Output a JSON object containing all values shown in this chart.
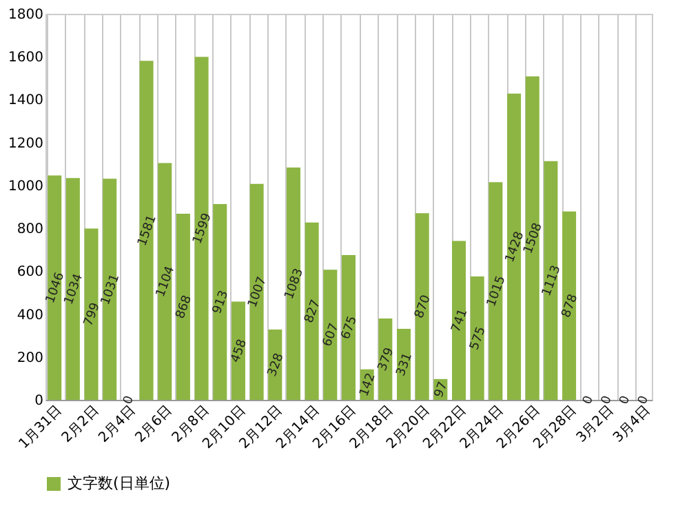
{
  "chart_data": {
    "type": "bar",
    "categories": [
      "1月31日",
      null,
      "2月2日",
      null,
      "2月4日",
      null,
      "2月6日",
      null,
      "2月8日",
      null,
      "2月10日",
      null,
      "2月12日",
      null,
      "2月14日",
      null,
      "2月16日",
      null,
      "2月18日",
      null,
      "2月20日",
      null,
      "2月22日",
      null,
      "2月24日",
      null,
      "2月26日",
      null,
      "2月28日",
      null,
      "3月2日",
      null,
      "3月4日"
    ],
    "series": [
      {
        "name": "文字数(日単位)",
        "color": "#8db543",
        "values": [
          1046,
          1034,
          799,
          1031,
          0,
          1581,
          1104,
          868,
          1599,
          913,
          458,
          1007,
          328,
          1083,
          827,
          607,
          675,
          142,
          379,
          331,
          870,
          97,
          741,
          575,
          1015,
          1428,
          1508,
          1113,
          878,
          0,
          0,
          0,
          0
        ]
      }
    ],
    "ylim": [
      0,
      1800
    ],
    "yticks": [
      0,
      200,
      400,
      600,
      800,
      1000,
      1200,
      1400,
      1600,
      1800
    ],
    "grid": "x",
    "legend": "bottom",
    "data_labels": true
  }
}
